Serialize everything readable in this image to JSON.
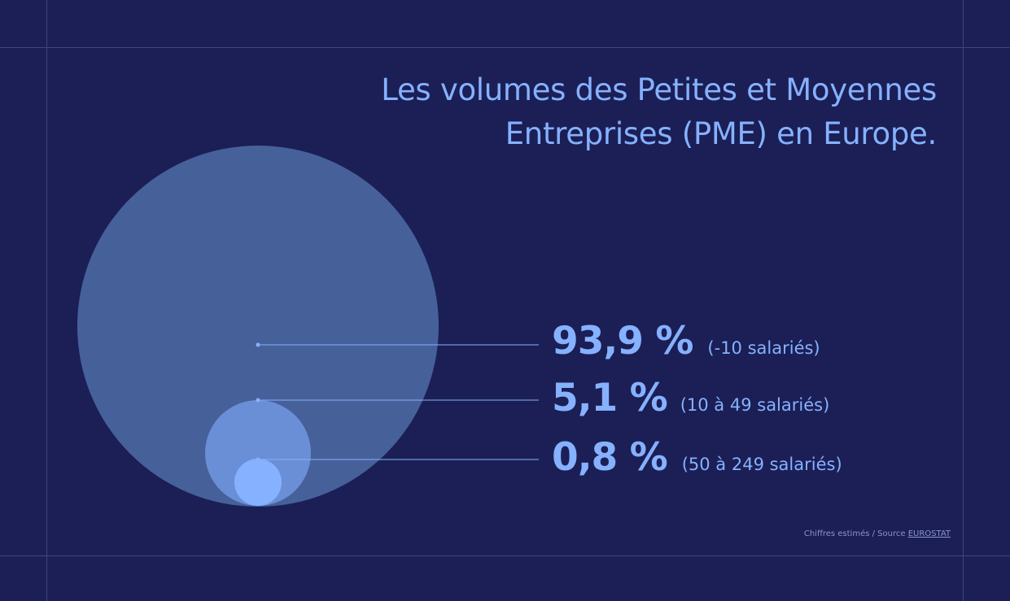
{
  "title_line1": "Les volumes des Petites et Moyennes",
  "title_line2": "Entreprises (PME) en Europe.",
  "colors": {
    "background": "#1b1f55",
    "text": "#86b1ff",
    "circle_large": "#46609a",
    "circle_medium": "#6a8fd6",
    "circle_small": "#86b1ff"
  },
  "chart_data": {
    "type": "bubble",
    "unit": "%",
    "series": [
      {
        "value": 93.9,
        "value_label": "93,9 %",
        "label": "(-10 salariés)"
      },
      {
        "value": 5.1,
        "value_label": "5,1 %",
        "label": "(10 à 49 salariés)"
      },
      {
        "value": 0.8,
        "value_label": "0,8 %",
        "label": "(50 à 249 salariés)"
      }
    ]
  },
  "source": {
    "text": "Chiffres estimés / Source ",
    "link": "EUROSTAT"
  }
}
